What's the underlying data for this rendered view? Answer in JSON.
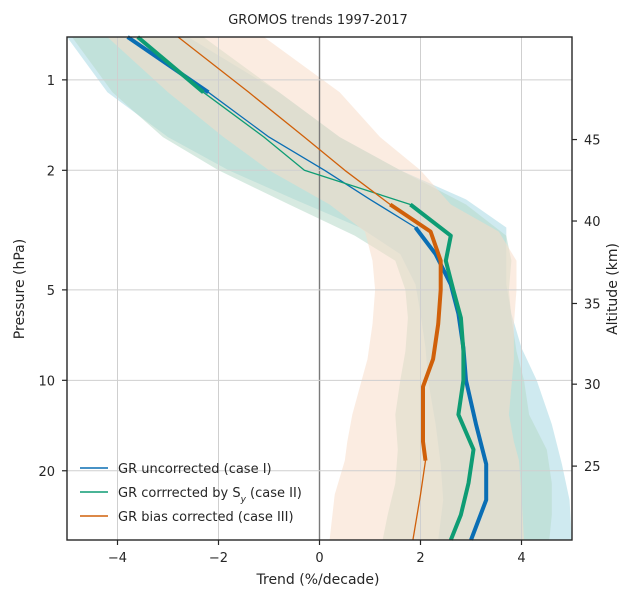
{
  "chart_data": {
    "type": "line",
    "title": "GROMOS trends 1997-2017",
    "xlabel": "Trend (%/decade)",
    "ylabel": "Pressure (hPa)",
    "ylabel_right": "Altitude (km)",
    "x_scale": "linear",
    "y_scale": "log",
    "y_inverted": true,
    "xlim": [
      -5,
      5
    ],
    "ylim": [
      0.72,
      34
    ],
    "xticks": [
      -4,
      -2,
      0,
      2,
      4
    ],
    "xtick_labels": [
      "−4",
      "−2",
      "0",
      "2",
      "4"
    ],
    "yticks": [
      1,
      2,
      5,
      10,
      20
    ],
    "ytick_labels": [
      "1",
      "2",
      "5",
      "10",
      "20"
    ],
    "altitude_ticks": [
      {
        "pressure": 1.58,
        "label": "45"
      },
      {
        "pressure": 2.95,
        "label": "40"
      },
      {
        "pressure": 5.55,
        "label": "35"
      },
      {
        "pressure": 10.3,
        "label": "30"
      },
      {
        "pressure": 19.3,
        "label": "25"
      }
    ],
    "grid": true,
    "zero_line": true,
    "legend_position": "lower-left",
    "series": [
      {
        "name": "GR uncorrected (case I)",
        "color": "#0a6eb4",
        "band_color": "#a8d8e4",
        "thick_from_pressure": 3.1,
        "thick_to_pressure": 1.1,
        "pressure": [
          0.72,
          1.1,
          1.55,
          2.0,
          2.5,
          3.1,
          3.8,
          4.8,
          6.0,
          7.8,
          10.0,
          14.0,
          19.0,
          25.0,
          34.0
        ],
        "trend": [
          -3.8,
          -2.2,
          -1.0,
          0.1,
          1.0,
          1.9,
          2.3,
          2.6,
          2.75,
          2.85,
          2.9,
          3.1,
          3.3,
          3.3,
          3.0
        ],
        "lower": [
          -5.0,
          -4.2,
          -3.0,
          -1.8,
          -0.5,
          0.8,
          1.6,
          1.9,
          2.0,
          2.1,
          2.15,
          2.3,
          2.4,
          2.45,
          2.35
        ],
        "upper": [
          -2.6,
          -0.8,
          0.4,
          1.6,
          2.9,
          3.7,
          3.7,
          3.7,
          3.8,
          4.0,
          4.3,
          4.6,
          4.8,
          4.95,
          5.0
        ]
      },
      {
        "name": "GR corrrected by S_y (case II)",
        "color": "#0e9c74",
        "band_color": "#b6d8c8",
        "thick_from_pressure": 2.6,
        "thick_to_pressure": 1.1,
        "pressure": [
          0.72,
          1.1,
          1.55,
          2.0,
          2.6,
          3.3,
          4.0,
          5.0,
          6.2,
          8.0,
          10.0,
          13.0,
          17.0,
          22.0,
          28.0,
          34.0
        ],
        "trend": [
          -3.6,
          -2.3,
          -1.1,
          -0.3,
          1.8,
          2.6,
          2.5,
          2.65,
          2.8,
          2.85,
          2.85,
          2.75,
          3.05,
          2.95,
          2.8,
          2.6
        ],
        "lower": [
          -4.9,
          -4.1,
          -3.1,
          -2.0,
          -0.6,
          0.7,
          1.5,
          1.7,
          1.75,
          1.7,
          1.6,
          1.5,
          1.55,
          1.5,
          1.35,
          1.25
        ],
        "upper": [
          -2.3,
          -0.8,
          0.4,
          1.6,
          2.9,
          3.7,
          3.8,
          3.75,
          3.8,
          3.9,
          4.05,
          4.15,
          4.5,
          4.6,
          4.6,
          4.55
        ]
      },
      {
        "name": "GR bias corrected (case III)",
        "color": "#d0600a",
        "band_color": "#f8dcc8",
        "thick_from_pressure": 2.8,
        "thick_to_pressure": 2.6,
        "thick_second_from_pressure": 18.5,
        "thick_second_to_pressure": 2.6,
        "pressure": [
          0.72,
          1.1,
          1.55,
          2.0,
          2.6,
          3.2,
          4.0,
          5.0,
          6.5,
          8.5,
          10.5,
          13.0,
          16.0,
          18.5,
          24.0,
          34.0
        ],
        "trend": [
          -2.8,
          -1.4,
          -0.3,
          0.5,
          1.4,
          2.2,
          2.4,
          2.4,
          2.35,
          2.25,
          2.05,
          2.05,
          2.05,
          2.1,
          2.0,
          1.85
        ],
        "lower": [
          -4.2,
          -3.0,
          -1.9,
          -1.0,
          0.2,
          0.9,
          1.05,
          1.1,
          1.05,
          0.95,
          0.8,
          0.65,
          0.55,
          0.5,
          0.3,
          0.2
        ],
        "upper": [
          -1.1,
          0.4,
          1.2,
          2.0,
          2.6,
          3.55,
          3.9,
          3.9,
          3.85,
          3.85,
          3.8,
          3.75,
          3.85,
          3.95,
          4.0,
          4.05
        ]
      }
    ]
  }
}
